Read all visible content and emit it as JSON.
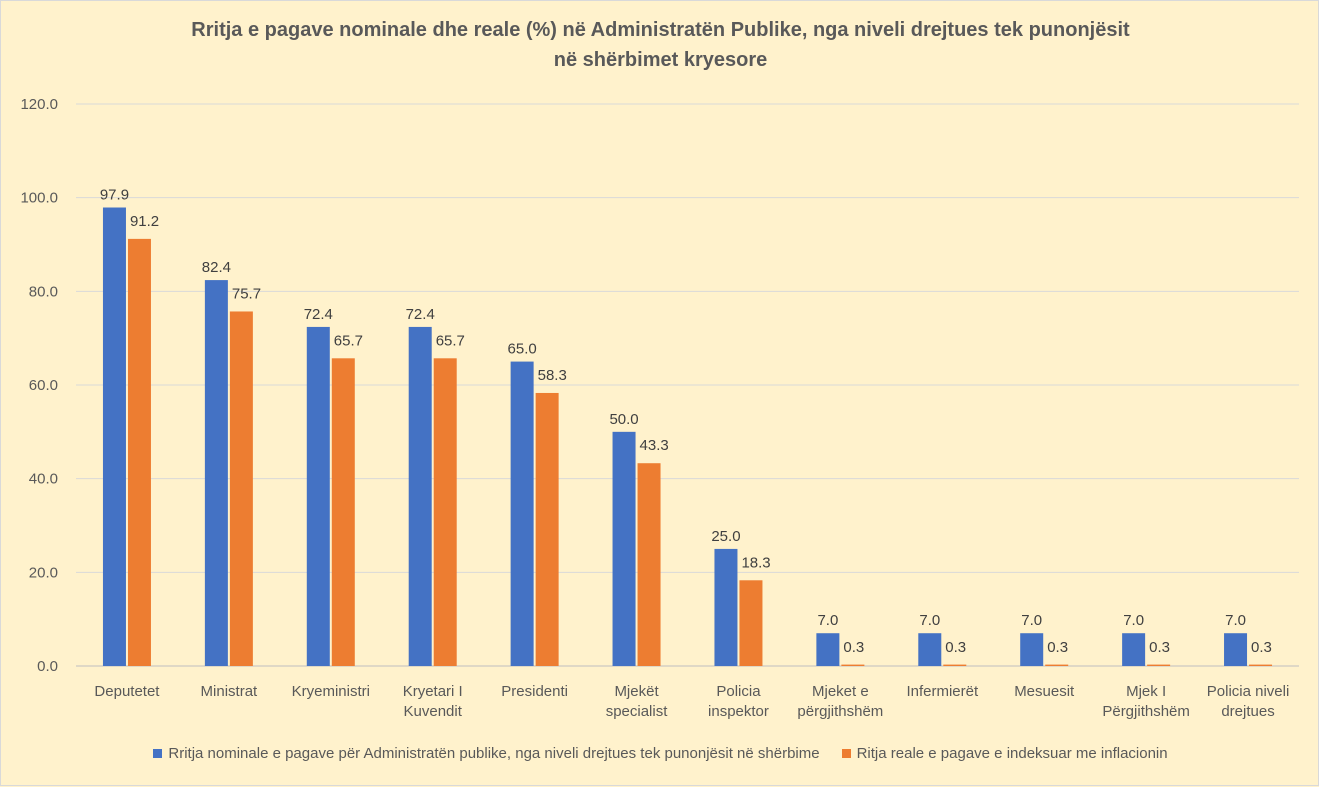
{
  "chart_data": {
    "type": "bar",
    "title_lines": [
      "Rritja e pagave nominale  dhe reale (%) në Administratën Publike, nga niveli drejtues tek punonjësit",
      "në shërbimet kryesore"
    ],
    "categories": [
      [
        "Deputetet"
      ],
      [
        "Ministrat"
      ],
      [
        "Kryeministri"
      ],
      [
        "Kryetari I",
        "Kuvendit"
      ],
      [
        "Presidenti"
      ],
      [
        "Mjekët",
        "specialist"
      ],
      [
        "Policia",
        "inspektor"
      ],
      [
        "Mjeket e",
        "përgjithshëm"
      ],
      [
        "Infermierët"
      ],
      [
        "Mesuesit"
      ],
      [
        "Mjek I",
        "Përgjithshëm"
      ],
      [
        "Policia niveli",
        "drejtues"
      ]
    ],
    "series": [
      {
        "name": "Rritja nominale e pagave për Administratën publike, nga niveli drejtues tek punonjësit në shërbime",
        "color": "#4472c4",
        "values": [
          97.9,
          82.4,
          72.4,
          72.4,
          65.0,
          50.0,
          25.0,
          7.0,
          7.0,
          7.0,
          7.0,
          7.0
        ],
        "labels": [
          "97.9",
          "82.4",
          "72.4",
          "72.4",
          "65.0",
          "50.0",
          "25.0",
          "7.0",
          "7.0",
          "7.0",
          "7.0",
          "7.0"
        ]
      },
      {
        "name": "Ritja reale e pagave e indeksuar me inflacionin",
        "color": "#ed7d31",
        "values": [
          91.2,
          75.7,
          65.7,
          65.7,
          58.3,
          43.3,
          18.3,
          0.3,
          0.3,
          0.3,
          0.3,
          0.3
        ],
        "labels": [
          "91.2",
          "75.7",
          "65.7",
          "65.7",
          "58.3",
          "43.3",
          "18.3",
          "0.3",
          "0.3",
          "0.3",
          "0.3",
          "0.3"
        ]
      }
    ],
    "ylim": [
      0,
      120
    ],
    "yticks": [
      "0.0",
      "20.0",
      "40.0",
      "60.0",
      "80.0",
      "100.0",
      "120.0"
    ],
    "grid": true,
    "legend": "bottom",
    "colors": {
      "background": "#fff2cc",
      "grid": "#d9d9d9",
      "text": "#595959"
    }
  }
}
